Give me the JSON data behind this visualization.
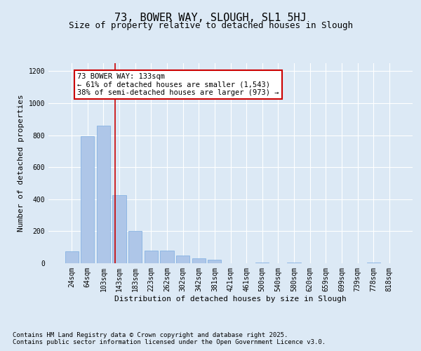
{
  "title": "73, BOWER WAY, SLOUGH, SL1 5HJ",
  "subtitle": "Size of property relative to detached houses in Slough",
  "xlabel": "Distribution of detached houses by size in Slough",
  "ylabel": "Number of detached properties",
  "categories": [
    "24sqm",
    "64sqm",
    "103sqm",
    "143sqm",
    "183sqm",
    "223sqm",
    "262sqm",
    "302sqm",
    "342sqm",
    "381sqm",
    "421sqm",
    "461sqm",
    "500sqm",
    "540sqm",
    "580sqm",
    "620sqm",
    "659sqm",
    "699sqm",
    "739sqm",
    "778sqm",
    "818sqm"
  ],
  "values": [
    75,
    795,
    860,
    425,
    200,
    80,
    80,
    50,
    30,
    20,
    0,
    0,
    5,
    0,
    5,
    0,
    0,
    0,
    0,
    5,
    0
  ],
  "bar_color": "#aec6e8",
  "bar_edgecolor": "#7aabe0",
  "background_color": "#dce9f5",
  "plot_background": "#dce9f5",
  "grid_color": "#ffffff",
  "annotation_text": "73 BOWER WAY: 133sqm\n← 61% of detached houses are smaller (1,543)\n38% of semi-detached houses are larger (973) →",
  "annotation_box_color": "#ffffff",
  "annotation_border_color": "#cc0000",
  "vline_color": "#cc0000",
  "ylim": [
    0,
    1250
  ],
  "yticks": [
    0,
    200,
    400,
    600,
    800,
    1000,
    1200
  ],
  "footer_line1": "Contains HM Land Registry data © Crown copyright and database right 2025.",
  "footer_line2": "Contains public sector information licensed under the Open Government Licence v3.0.",
  "title_fontsize": 11,
  "subtitle_fontsize": 9,
  "tick_fontsize": 7,
  "label_fontsize": 8,
  "annotation_fontsize": 7.5,
  "footer_fontsize": 6.5,
  "vline_x": 2.75
}
